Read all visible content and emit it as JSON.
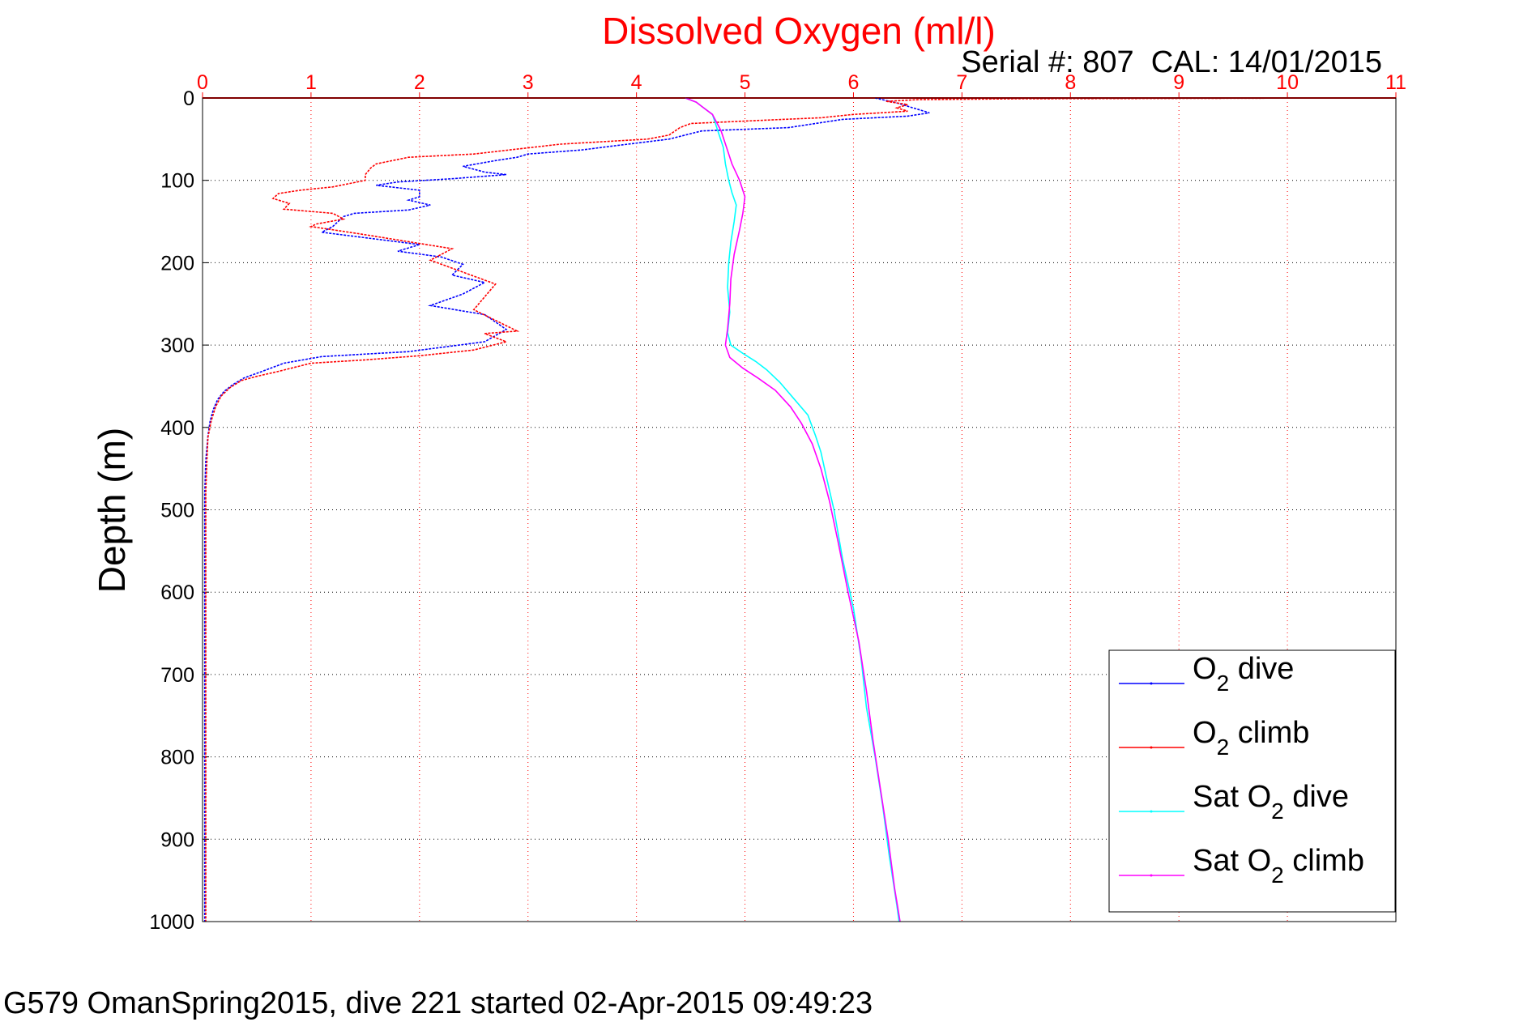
{
  "chart_data": {
    "type": "line",
    "title": "Dissolved Oxygen (ml/l)",
    "subtitle": "Serial #: 807  CAL: 14/01/2015",
    "xlabel": "",
    "ylabel": "Depth (m)",
    "xlim": [
      0,
      11
    ],
    "ylim": [
      0,
      1000
    ],
    "y_reversed": true,
    "x_axis_position": "top",
    "xticks": [
      "0",
      "1",
      "2",
      "3",
      "4",
      "5",
      "6",
      "7",
      "8",
      "9",
      "10",
      "11"
    ],
    "yticks": [
      "0",
      "100",
      "200",
      "300",
      "400",
      "500",
      "600",
      "700",
      "800",
      "900",
      "1000"
    ],
    "grid": true,
    "legend_position": "bottom-right",
    "colors": {
      "title": "#ff0000",
      "x_axis": "#ff0000",
      "grid_red": "#ff0000",
      "grid_black": "#000000"
    },
    "series": [
      {
        "name": "O2 dive",
        "label_main": "O",
        "label_sub": "2",
        "label_rest": " dive",
        "color": "#0000ff",
        "points": [
          [
            6.2,
            0
          ],
          [
            6.3,
            3
          ],
          [
            6.4,
            6
          ],
          [
            6.5,
            10
          ],
          [
            6.7,
            18
          ],
          [
            6.5,
            22
          ],
          [
            5.9,
            26
          ],
          [
            5.6,
            32
          ],
          [
            5.4,
            36
          ],
          [
            4.6,
            40
          ],
          [
            4.3,
            50
          ],
          [
            3.8,
            58
          ],
          [
            3.5,
            63
          ],
          [
            3.0,
            68
          ],
          [
            2.9,
            72
          ],
          [
            2.7,
            76
          ],
          [
            2.4,
            83
          ],
          [
            2.6,
            90
          ],
          [
            2.8,
            93
          ],
          [
            2.3,
            98
          ],
          [
            1.8,
            102
          ],
          [
            1.6,
            106
          ],
          [
            2.0,
            112
          ],
          [
            2.0,
            120
          ],
          [
            1.9,
            124
          ],
          [
            2.1,
            130
          ],
          [
            1.9,
            136
          ],
          [
            1.4,
            140
          ],
          [
            1.3,
            144
          ],
          [
            1.25,
            150
          ],
          [
            1.2,
            156
          ],
          [
            1.1,
            163
          ],
          [
            2.0,
            178
          ],
          [
            1.8,
            186
          ],
          [
            2.2,
            193
          ],
          [
            2.4,
            202
          ],
          [
            2.3,
            215
          ],
          [
            2.6,
            224
          ],
          [
            2.4,
            238
          ],
          [
            2.1,
            252
          ],
          [
            2.6,
            263
          ],
          [
            2.7,
            272
          ],
          [
            2.8,
            281
          ],
          [
            2.6,
            296
          ],
          [
            1.9,
            308
          ],
          [
            1.1,
            314
          ],
          [
            0.75,
            322
          ],
          [
            0.55,
            332
          ],
          [
            0.38,
            340
          ],
          [
            0.28,
            348
          ],
          [
            0.2,
            356
          ],
          [
            0.14,
            366
          ],
          [
            0.1,
            378
          ],
          [
            0.07,
            392
          ],
          [
            0.05,
            410
          ],
          [
            0.03,
            440
          ],
          [
            0.02,
            480
          ],
          [
            0.02,
            550
          ],
          [
            0.02,
            650
          ],
          [
            0.02,
            750
          ],
          [
            0.02,
            850
          ],
          [
            0.02,
            950
          ],
          [
            0.02,
            1000
          ]
        ]
      },
      {
        "name": "O2 climb",
        "label_main": "O",
        "label_sub": "2",
        "label_rest": " climb",
        "color": "#ff0000",
        "points": [
          [
            10.6,
            0
          ],
          [
            7.5,
            1
          ],
          [
            6.6,
            2
          ],
          [
            6.3,
            4
          ],
          [
            6.5,
            8
          ],
          [
            6.4,
            12
          ],
          [
            6.5,
            16
          ],
          [
            6.0,
            20
          ],
          [
            5.7,
            24
          ],
          [
            5.0,
            28
          ],
          [
            4.5,
            31
          ],
          [
            4.4,
            36
          ],
          [
            4.3,
            45
          ],
          [
            4.1,
            50
          ],
          [
            3.3,
            56
          ],
          [
            2.9,
            62
          ],
          [
            2.5,
            68
          ],
          [
            1.9,
            72
          ],
          [
            1.6,
            80
          ],
          [
            1.55,
            85
          ],
          [
            1.5,
            93
          ],
          [
            1.5,
            100
          ],
          [
            1.2,
            108
          ],
          [
            0.9,
            112
          ],
          [
            0.7,
            116
          ],
          [
            0.65,
            122
          ],
          [
            0.8,
            128
          ],
          [
            0.75,
            135
          ],
          [
            1.2,
            140
          ],
          [
            1.3,
            147
          ],
          [
            1.05,
            153
          ],
          [
            1.0,
            156
          ],
          [
            1.45,
            165
          ],
          [
            2.3,
            183
          ],
          [
            2.1,
            197
          ],
          [
            2.7,
            226
          ],
          [
            2.5,
            257
          ],
          [
            2.9,
            283
          ],
          [
            2.6,
            286
          ],
          [
            2.8,
            296
          ],
          [
            2.5,
            306
          ],
          [
            2.0,
            313
          ],
          [
            1.5,
            318
          ],
          [
            1.0,
            322
          ],
          [
            0.7,
            332
          ],
          [
            0.5,
            338
          ],
          [
            0.36,
            343
          ],
          [
            0.25,
            352
          ],
          [
            0.17,
            362
          ],
          [
            0.12,
            375
          ],
          [
            0.08,
            392
          ],
          [
            0.05,
            412
          ],
          [
            0.04,
            440
          ],
          [
            0.03,
            480
          ],
          [
            0.03,
            550
          ],
          [
            0.03,
            650
          ],
          [
            0.03,
            750
          ],
          [
            0.03,
            850
          ],
          [
            0.03,
            950
          ],
          [
            0.03,
            1000
          ]
        ]
      },
      {
        "name": "Sat O2 dive",
        "label_main": "Sat O",
        "label_sub": "2",
        "label_rest": " dive",
        "color": "#00ffff",
        "points": [
          [
            4.45,
            0
          ],
          [
            4.55,
            5
          ],
          [
            4.6,
            10
          ],
          [
            4.7,
            20
          ],
          [
            4.75,
            40
          ],
          [
            4.8,
            60
          ],
          [
            4.82,
            80
          ],
          [
            4.85,
            100
          ],
          [
            4.88,
            115
          ],
          [
            4.92,
            130
          ],
          [
            4.9,
            150
          ],
          [
            4.87,
            175
          ],
          [
            4.85,
            200
          ],
          [
            4.84,
            230
          ],
          [
            4.86,
            260
          ],
          [
            4.84,
            285
          ],
          [
            4.87,
            300
          ],
          [
            4.98,
            310
          ],
          [
            5.1,
            320
          ],
          [
            5.2,
            330
          ],
          [
            5.32,
            345
          ],
          [
            5.45,
            365
          ],
          [
            5.58,
            385
          ],
          [
            5.65,
            410
          ],
          [
            5.7,
            430
          ],
          [
            5.75,
            460
          ],
          [
            5.82,
            500
          ],
          [
            5.9,
            560
          ],
          [
            6.0,
            620
          ],
          [
            6.07,
            680
          ],
          [
            6.12,
            740
          ],
          [
            6.2,
            800
          ],
          [
            6.27,
            860
          ],
          [
            6.33,
            920
          ],
          [
            6.4,
            980
          ],
          [
            6.42,
            1000
          ]
        ]
      },
      {
        "name": "Sat O2 climb",
        "label_main": "Sat O",
        "label_sub": "2",
        "label_rest": " climb",
        "color": "#ff00ff",
        "points": [
          [
            4.45,
            0
          ],
          [
            4.55,
            5
          ],
          [
            4.6,
            10
          ],
          [
            4.7,
            20
          ],
          [
            4.78,
            40
          ],
          [
            4.83,
            60
          ],
          [
            4.88,
            80
          ],
          [
            4.95,
            100
          ],
          [
            5.0,
            120
          ],
          [
            4.98,
            140
          ],
          [
            4.95,
            160
          ],
          [
            4.9,
            190
          ],
          [
            4.87,
            220
          ],
          [
            4.86,
            250
          ],
          [
            4.84,
            280
          ],
          [
            4.82,
            300
          ],
          [
            4.86,
            315
          ],
          [
            4.98,
            328
          ],
          [
            5.12,
            340
          ],
          [
            5.28,
            355
          ],
          [
            5.42,
            375
          ],
          [
            5.52,
            395
          ],
          [
            5.62,
            420
          ],
          [
            5.7,
            450
          ],
          [
            5.78,
            490
          ],
          [
            5.86,
            540
          ],
          [
            5.95,
            600
          ],
          [
            6.05,
            660
          ],
          [
            6.12,
            720
          ],
          [
            6.18,
            780
          ],
          [
            6.25,
            840
          ],
          [
            6.32,
            900
          ],
          [
            6.38,
            960
          ],
          [
            6.43,
            1000
          ]
        ]
      }
    ]
  },
  "footer": "G579 OmanSpring2015, dive 221 started 02-Apr-2015 09:49:23"
}
